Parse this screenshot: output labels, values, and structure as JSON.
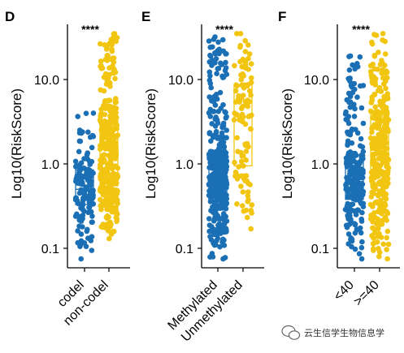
{
  "colors": {
    "group1": "#1a6fb5",
    "group2": "#f2c511"
  },
  "watermark": {
    "text": "云生信学生物信息学",
    "icon": "wechat-icon"
  },
  "chart_data": [
    {
      "panel": "D",
      "type": "scatter",
      "title": "",
      "ylabel": "Log10(RiskScore)",
      "yscale": "log",
      "ylim": [
        0.07,
        40
      ],
      "yticks": [
        0.1,
        1.0,
        10.0
      ],
      "ytick_labels": [
        "0.1",
        "1.0",
        "10.0"
      ],
      "significance": "****",
      "categories": [
        "codel",
        "non-codel"
      ],
      "groups": [
        {
          "category": "codel",
          "color": "#1a6fb5",
          "min": 0.075,
          "q1": 0.33,
          "median": 0.5,
          "q3": 0.85,
          "max": 4.0,
          "n": 160
        },
        {
          "category": "non-codel",
          "color": "#f2c511",
          "min": 0.13,
          "q1": 0.55,
          "median": 1.5,
          "q3": 3.3,
          "max": 35,
          "n": 330
        }
      ]
    },
    {
      "panel": "E",
      "type": "scatter",
      "title": "",
      "ylabel": "Log10(RiskScore)",
      "yscale": "log",
      "ylim": [
        0.07,
        40
      ],
      "yticks": [
        0.1,
        1.0,
        10.0
      ],
      "ytick_labels": [
        "0.1",
        "1.0",
        "10.0"
      ],
      "significance": "****",
      "categories": [
        "Methylated",
        "Unmethylated"
      ],
      "groups": [
        {
          "category": "Methylated",
          "color": "#1a6fb5",
          "min": 0.075,
          "q1": 0.4,
          "median": 0.68,
          "q3": 1.25,
          "max": 32,
          "n": 420
        },
        {
          "category": "Unmethylated",
          "color": "#f2c511",
          "min": 0.17,
          "q1": 0.95,
          "median": 3.6,
          "q3": 8.6,
          "max": 35,
          "n": 110
        }
      ]
    },
    {
      "panel": "F",
      "type": "scatter",
      "title": "",
      "ylabel": "Log10(RiskScore)",
      "yscale": "log",
      "ylim": [
        0.07,
        40
      ],
      "yticks": [
        0.1,
        1.0,
        10.0
      ],
      "ytick_labels": [
        "0.1",
        "1.0",
        "10.0"
      ],
      "significance": "****",
      "categories": [
        "<40",
        ">=40"
      ],
      "groups": [
        {
          "category": "<40",
          "color": "#1a6fb5",
          "min": 0.075,
          "q1": 0.38,
          "median": 0.62,
          "q3": 1.08,
          "max": 19,
          "n": 230
        },
        {
          "category": ">=40",
          "color": "#f2c511",
          "min": 0.075,
          "q1": 0.55,
          "median": 1.45,
          "q3": 4.0,
          "max": 35,
          "n": 300
        }
      ]
    }
  ]
}
